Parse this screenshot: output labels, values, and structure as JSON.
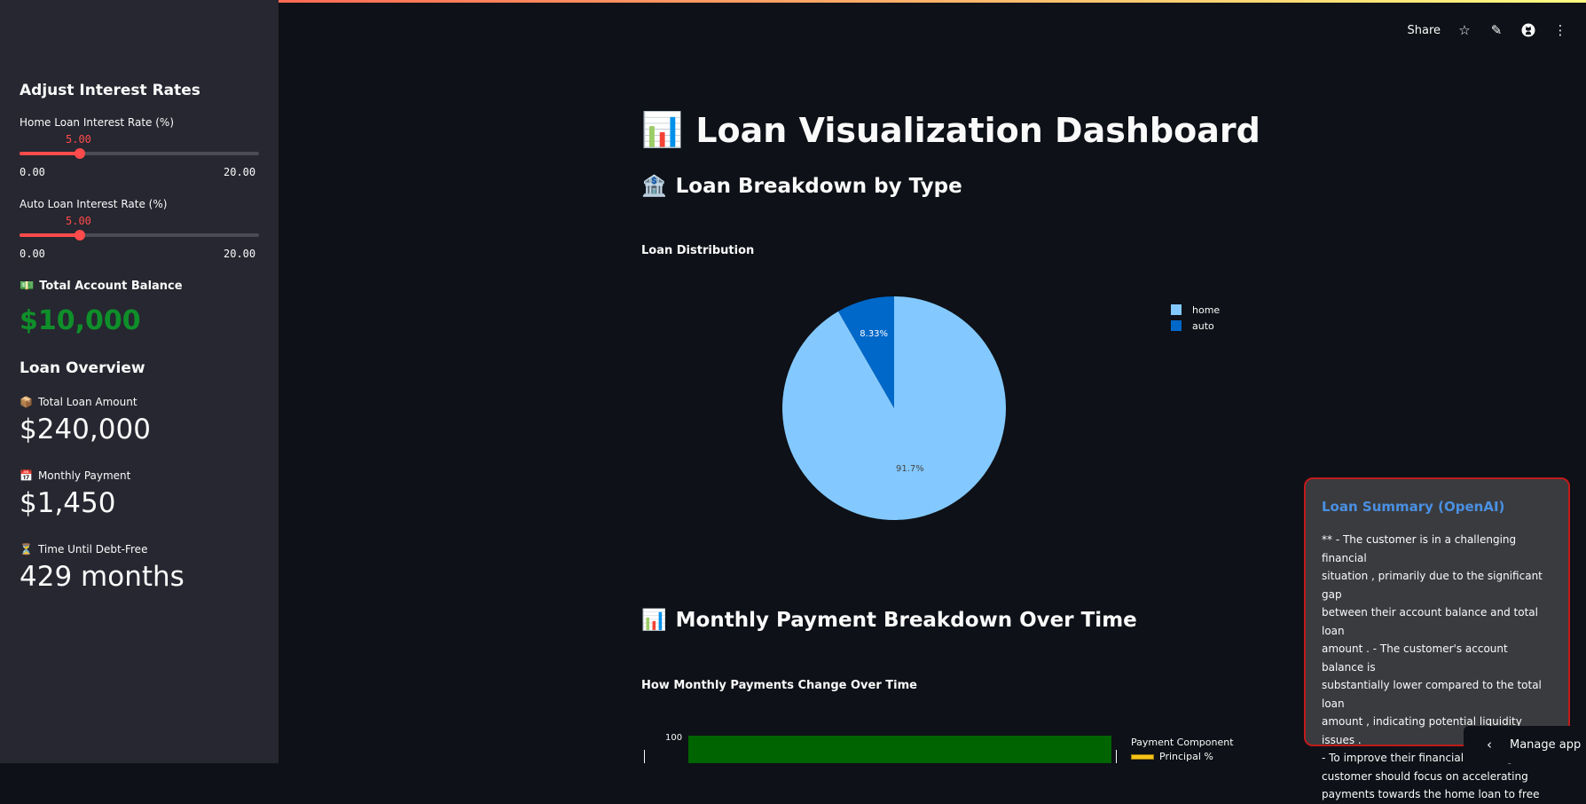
{
  "toolbar": {
    "share_label": "Share",
    "icons": [
      "star-icon",
      "pencil-icon",
      "github-icon",
      "more-vertical-icon"
    ]
  },
  "sidebar": {
    "heading": "Adjust Interest Rates",
    "home_rate": {
      "label": "Home Loan Interest Rate (%)",
      "value": "5.00",
      "min": "0.00",
      "max": "20.00",
      "fraction": 0.25
    },
    "auto_rate": {
      "label": "Auto Loan Interest Rate (%)",
      "value": "5.00",
      "min": "0.00",
      "max": "20.00",
      "fraction": 0.25
    },
    "balance": {
      "emoji": "💵",
      "label": "Total Account Balance",
      "value": "$10,000",
      "color": "#0f8f2a"
    },
    "overview_heading": "Loan Overview",
    "metrics": [
      {
        "emoji": "📦",
        "label": "Total Loan Amount",
        "value": "$240,000"
      },
      {
        "emoji": "📅",
        "label": "Monthly Payment",
        "value": "$1,450"
      },
      {
        "emoji": "⏳",
        "label": "Time Until Debt-Free",
        "value": "429 months"
      }
    ]
  },
  "main": {
    "title_emoji": "📊",
    "title": "Loan Visualization Dashboard",
    "breakdown": {
      "emoji": "🏦",
      "heading": "Loan Breakdown by Type"
    },
    "monthly": {
      "emoji": "📊",
      "heading": "Monthly Payment Breakdown Over Time"
    },
    "bar_chart_title": "How Monthly Payments Change Over Time",
    "bar_chart_tick": "100",
    "bar_legend_title": "Payment Component",
    "bar_legend_item": "Principal %"
  },
  "chart_data": {
    "type": "pie",
    "title": "Loan Distribution",
    "categories": [
      "home",
      "auto"
    ],
    "values": [
      91.67,
      8.33
    ],
    "labels": [
      "91.7%",
      "8.33%"
    ],
    "colors": [
      "#83c9ff",
      "#0068c9"
    ],
    "legend": "top-right"
  },
  "summary": {
    "title": "Loan Summary (OpenAI)",
    "lines": [
      "** - The customer is in a challenging financial",
      "situation , primarily due to the significant gap",
      "between their account balance and total loan",
      "amount . - The customer's account balance is",
      "substantially lower compared to the total loan",
      "amount , indicating potential liquidity issues .",
      "- To improve their financial standing , the",
      "customer should focus on accelerating",
      "payments towards the home loan to free"
    ]
  },
  "manage_app": {
    "label": "Manage app"
  },
  "colors": {
    "accent": "#ff4b4b",
    "background": "#0e1117",
    "sidebar": "#262730",
    "summary_border": "#c01b1b",
    "summary_title": "#4a90e2",
    "bar_fill": "#006400"
  }
}
